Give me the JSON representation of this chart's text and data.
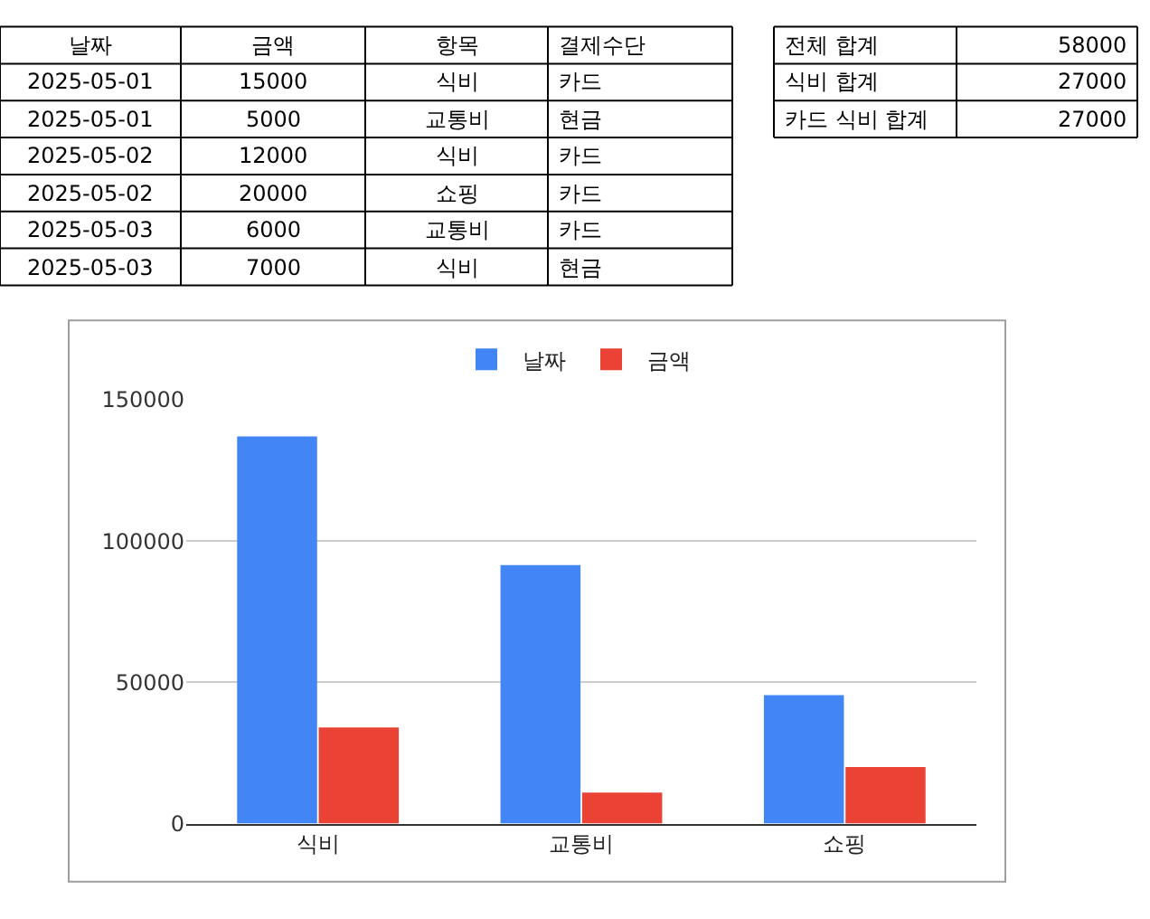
{
  "chart_data": [
    {
      "type": "other",
      "annotations": [
        "날짜",
        "금액",
        "항목",
        "결제수단",
        "2025-05-01",
        "15000",
        "식비",
        "카드",
        "2025-05-01",
        "5000",
        "교통비",
        "현금",
        "2025-05-02",
        "12000",
        "식비",
        "카드",
        "2025-05-02",
        "20000",
        "쇼핑",
        "카드",
        "2025-05-03",
        "6000",
        "교통비",
        "카드",
        "2025-05-03",
        "7000",
        "식비",
        "현금"
      ]
    },
    {
      "type": "other",
      "annotations": [
        "전체 합계",
        "58000",
        "식비 합계",
        "27000",
        "카드 식비 합계",
        "27000"
      ]
    },
    {
      "type": "bar",
      "categories": [
        "식비",
        "교통비",
        "쇼핑"
      ],
      "series": [
        {
          "name": "날짜",
          "color": "#4285f4",
          "values": [
            137000,
            91500,
            45500
          ]
        },
        {
          "name": "금액",
          "color": "#ea4335",
          "values": [
            34000,
            11000,
            20000
          ]
        }
      ],
      "ylim": [
        0,
        150000
      ],
      "yticks": [
        0,
        50000,
        100000,
        150000
      ],
      "grid": "y",
      "legend": "top"
    }
  ]
}
